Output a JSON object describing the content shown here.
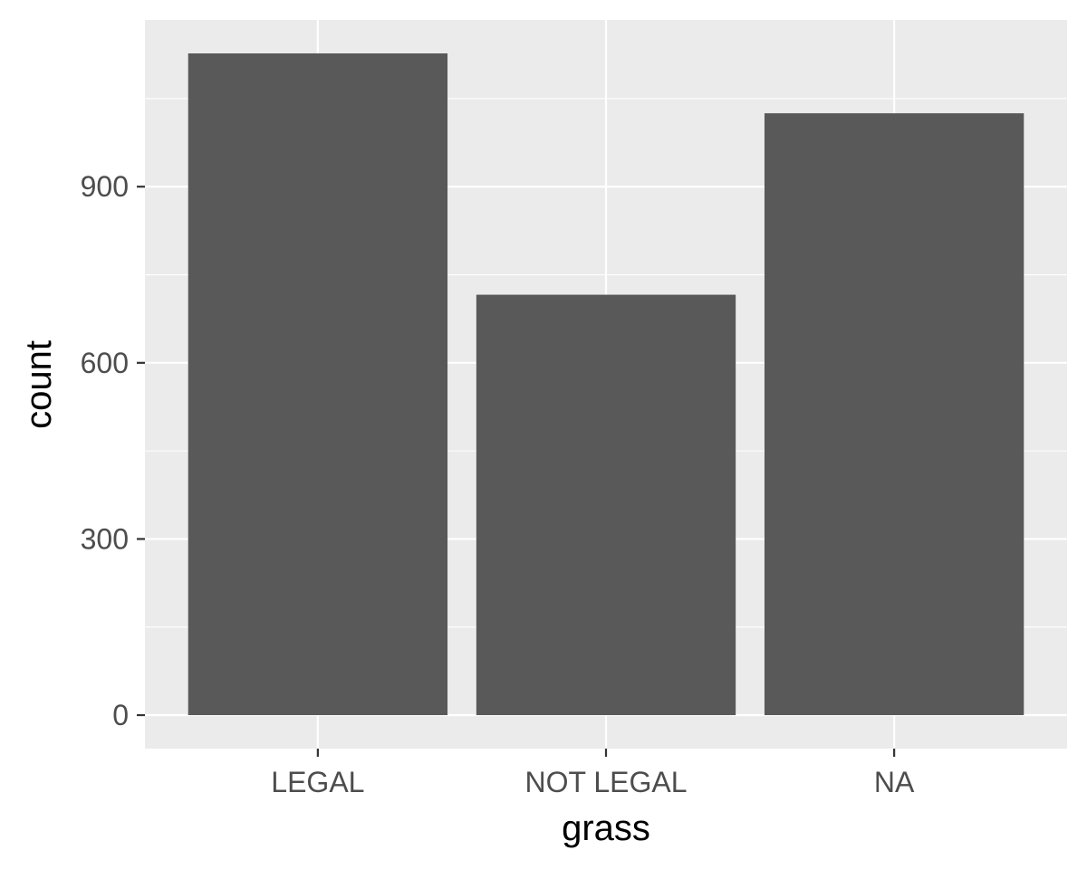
{
  "chart_data": {
    "type": "bar",
    "categories": [
      "LEGAL",
      "NOT LEGAL",
      "NA"
    ],
    "values": [
      1127,
      716,
      1025
    ],
    "xlabel": "grass",
    "ylabel": "count",
    "ylim": [
      -57,
      1184
    ],
    "yticks": [
      0,
      300,
      600,
      900
    ],
    "yminor": [
      150,
      450,
      750,
      1050
    ],
    "grid": true,
    "legend": "none",
    "colors": {
      "panel": "#ebebeb",
      "grid": "#ffffff",
      "bar": "#595959",
      "tick": "#333333"
    }
  }
}
